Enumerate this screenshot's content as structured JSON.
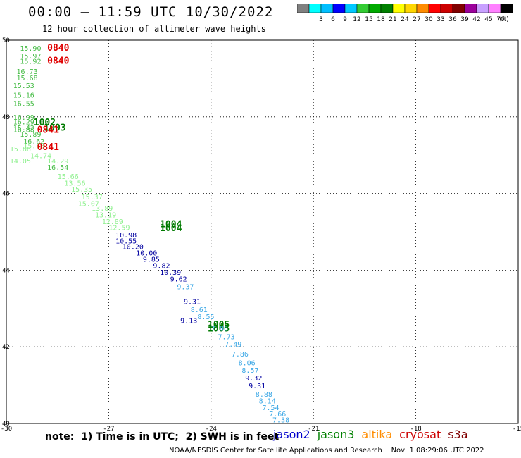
{
  "header": {
    "title": "00:00 – 11:59 UTC 10/30/2022",
    "subtitle": "12 hour collection of altimeter wave heights"
  },
  "colorbar": {
    "unit": "(ft)",
    "entries": [
      {
        "label": "",
        "color": "#808080"
      },
      {
        "label": "3",
        "color": "#00ffff"
      },
      {
        "label": "6",
        "color": "#00bfff"
      },
      {
        "label": "9",
        "color": "#0000ff"
      },
      {
        "label": "12",
        "color": "#00c8ff"
      },
      {
        "label": "15",
        "color": "#33cc33"
      },
      {
        "label": "18",
        "color": "#00aa00"
      },
      {
        "label": "21",
        "color": "#008000"
      },
      {
        "label": "24",
        "color": "#ffff00"
      },
      {
        "label": "27",
        "color": "#ffd700"
      },
      {
        "label": "30",
        "color": "#ff8c00"
      },
      {
        "label": "33",
        "color": "#ff0000"
      },
      {
        "label": "36",
        "color": "#cc0000"
      },
      {
        "label": "39",
        "color": "#800000"
      },
      {
        "label": "42",
        "color": "#9b009b"
      },
      {
        "label": "45",
        "color": "#c8a0ff"
      },
      {
        "label": "70",
        "color": "#ff80ff"
      },
      {
        "label": "",
        "color": "#000000"
      }
    ]
  },
  "map": {
    "lon_range": [
      -30,
      -15
    ],
    "lat_range": [
      40,
      50
    ],
    "lon_ticks": [
      "-30",
      "-27",
      "-24",
      "-21",
      "-18",
      "-15"
    ],
    "lat_ticks": [
      "40",
      "42",
      "44",
      "46",
      "48",
      "50"
    ],
    "grid": "dotted",
    "colors": {
      "sat_red": "#e00000",
      "sat_darkgreen": "#007a00",
      "green": "#44bb44",
      "lightgreen": "#8ef08e",
      "darkblue": "#0000a0",
      "lightblue": "#3ca8e6"
    }
  },
  "observations": [
    {
      "text": "15.90",
      "lon": -29.6,
      "lat": 49.72,
      "color": "green"
    },
    {
      "text": "0840",
      "lon": -28.8,
      "lat": 49.72,
      "color": "sat_red"
    },
    {
      "text": "15.97",
      "lon": -29.6,
      "lat": 49.52,
      "color": "green"
    },
    {
      "text": "15.92",
      "lon": -29.6,
      "lat": 49.38,
      "color": "green"
    },
    {
      "text": "0840",
      "lon": -28.8,
      "lat": 49.38,
      "color": "sat_red"
    },
    {
      "text": "16.73",
      "lon": -29.7,
      "lat": 49.12,
      "color": "green"
    },
    {
      "text": "15.68",
      "lon": -29.7,
      "lat": 48.95,
      "color": "green"
    },
    {
      "text": "15.53",
      "lon": -29.8,
      "lat": 48.75,
      "color": "green"
    },
    {
      "text": "15.16",
      "lon": -29.8,
      "lat": 48.5,
      "color": "green"
    },
    {
      "text": "16.55",
      "lon": -29.8,
      "lat": 48.28,
      "color": "green"
    },
    {
      "text": "16.99",
      "lon": -29.8,
      "lat": 47.92,
      "color": "green"
    },
    {
      "text": "16.29",
      "lon": -29.8,
      "lat": 47.8,
      "color": "green"
    },
    {
      "text": "1002",
      "lon": -29.2,
      "lat": 47.78,
      "color": "sat_darkgreen"
    },
    {
      "text": "15.42",
      "lon": -29.8,
      "lat": 47.65,
      "color": "green"
    },
    {
      "text": "1003",
      "lon": -28.9,
      "lat": 47.64,
      "color": "sat_darkgreen"
    },
    {
      "text": "16.88",
      "lon": -29.8,
      "lat": 47.6,
      "color": "green"
    },
    {
      "text": "0841",
      "lon": -29.1,
      "lat": 47.58,
      "color": "sat_red"
    },
    {
      "text": "15.89",
      "lon": -29.6,
      "lat": 47.48,
      "color": "green"
    },
    {
      "text": "16.62",
      "lon": -29.5,
      "lat": 47.3,
      "color": "green"
    },
    {
      "text": "15.88",
      "lon": -29.5,
      "lat": 47.18,
      "color": "lightgreen"
    },
    {
      "text": "15.88",
      "lon": -29.9,
      "lat": 47.1,
      "color": "lightgreen"
    },
    {
      "text": "0841",
      "lon": -29.1,
      "lat": 47.13,
      "color": "sat_red"
    },
    {
      "text": "14.74",
      "lon": -29.3,
      "lat": 46.92,
      "color": "lightgreen"
    },
    {
      "text": "14.05",
      "lon": -29.9,
      "lat": 46.78,
      "color": "lightgreen"
    },
    {
      "text": "14.29",
      "lon": -28.8,
      "lat": 46.78,
      "color": "lightgreen"
    },
    {
      "text": "16.54",
      "lon": -28.8,
      "lat": 46.62,
      "color": "green"
    },
    {
      "text": "15.66",
      "lon": -28.5,
      "lat": 46.38,
      "color": "lightgreen"
    },
    {
      "text": "13.56",
      "lon": -28.3,
      "lat": 46.2,
      "color": "lightgreen"
    },
    {
      "text": "15.35",
      "lon": -28.1,
      "lat": 46.05,
      "color": "lightgreen"
    },
    {
      "text": "15.37",
      "lon": -27.8,
      "lat": 45.85,
      "color": "lightgreen"
    },
    {
      "text": "15.07",
      "lon": -27.9,
      "lat": 45.67,
      "color": "lightgreen"
    },
    {
      "text": "13.89",
      "lon": -27.5,
      "lat": 45.55,
      "color": "lightgreen"
    },
    {
      "text": "13.19",
      "lon": -27.4,
      "lat": 45.38,
      "color": "lightgreen"
    },
    {
      "text": "12.89",
      "lon": -27.2,
      "lat": 45.2,
      "color": "lightgreen"
    },
    {
      "text": "1004",
      "lon": -25.5,
      "lat": 45.12,
      "color": "sat_darkgreen"
    },
    {
      "text": "1004",
      "lon": -25.5,
      "lat": 45.02,
      "color": "sat_darkgreen"
    },
    {
      "text": "12.59",
      "lon": -27.0,
      "lat": 45.05,
      "color": "lightgreen"
    },
    {
      "text": "10.98",
      "lon": -26.8,
      "lat": 44.85,
      "color": "darkblue"
    },
    {
      "text": "10.55",
      "lon": -26.8,
      "lat": 44.7,
      "color": "darkblue"
    },
    {
      "text": "10.20",
      "lon": -26.6,
      "lat": 44.55,
      "color": "darkblue"
    },
    {
      "text": "10.00",
      "lon": -26.2,
      "lat": 44.38,
      "color": "darkblue"
    },
    {
      "text": "9.85",
      "lon": -26.0,
      "lat": 44.22,
      "color": "darkblue"
    },
    {
      "text": "9.82",
      "lon": -25.7,
      "lat": 44.05,
      "color": "darkblue"
    },
    {
      "text": "10.39",
      "lon": -25.5,
      "lat": 43.88,
      "color": "darkblue"
    },
    {
      "text": "9.62",
      "lon": -25.2,
      "lat": 43.7,
      "color": "darkblue"
    },
    {
      "text": "9.37",
      "lon": -25.0,
      "lat": 43.5,
      "color": "lightblue"
    },
    {
      "text": "9.31",
      "lon": -24.8,
      "lat": 43.12,
      "color": "darkblue"
    },
    {
      "text": "8.61",
      "lon": -24.6,
      "lat": 42.9,
      "color": "lightblue"
    },
    {
      "text": "8.55",
      "lon": -24.4,
      "lat": 42.72,
      "color": "lightblue"
    },
    {
      "text": "9.13",
      "lon": -24.9,
      "lat": 42.62,
      "color": "darkblue"
    },
    {
      "text": "1005",
      "lon": -24.1,
      "lat": 42.5,
      "color": "sat_darkgreen"
    },
    {
      "text": "1005",
      "lon": -24.1,
      "lat": 42.4,
      "color": "sat_darkgreen"
    },
    {
      "text": "7.86",
      "lon": -24.0,
      "lat": 42.42,
      "color": "lightblue"
    },
    {
      "text": "7.73",
      "lon": -23.8,
      "lat": 42.2,
      "color": "lightblue"
    },
    {
      "text": "7.49",
      "lon": -23.6,
      "lat": 42.0,
      "color": "lightblue"
    },
    {
      "text": "7.86",
      "lon": -23.4,
      "lat": 41.75,
      "color": "lightblue"
    },
    {
      "text": "8.06",
      "lon": -23.2,
      "lat": 41.52,
      "color": "lightblue"
    },
    {
      "text": "8.57",
      "lon": -23.1,
      "lat": 41.32,
      "color": "lightblue"
    },
    {
      "text": "9.32",
      "lon": -23.0,
      "lat": 41.12,
      "color": "darkblue"
    },
    {
      "text": "9.31",
      "lon": -22.9,
      "lat": 40.92,
      "color": "darkblue"
    },
    {
      "text": "8.88",
      "lon": -22.7,
      "lat": 40.7,
      "color": "lightblue"
    },
    {
      "text": "8.14",
      "lon": -22.6,
      "lat": 40.52,
      "color": "lightblue"
    },
    {
      "text": "7.54",
      "lon": -22.5,
      "lat": 40.35,
      "color": "lightblue"
    },
    {
      "text": "7.66",
      "lon": -22.3,
      "lat": 40.18,
      "color": "lightblue"
    },
    {
      "text": "7.38",
      "lon": -22.2,
      "lat": 40.03,
      "color": "lightblue"
    }
  ],
  "footer": {
    "note": "note:  1) Time is in UTC;  2) SWH is in feet",
    "satellites": [
      {
        "name": "jason2",
        "color": "#0000cc"
      },
      {
        "name": "jason3",
        "color": "#008000"
      },
      {
        "name": "altika",
        "color": "#ff8c00"
      },
      {
        "name": "cryosat",
        "color": "#cc0000"
      },
      {
        "name": "s3a",
        "color": "#800000"
      }
    ],
    "credit": "NOAA/NESDIS Center for Satellite Applications and Research    Nov  1 08:29:06 UTC 2022"
  }
}
